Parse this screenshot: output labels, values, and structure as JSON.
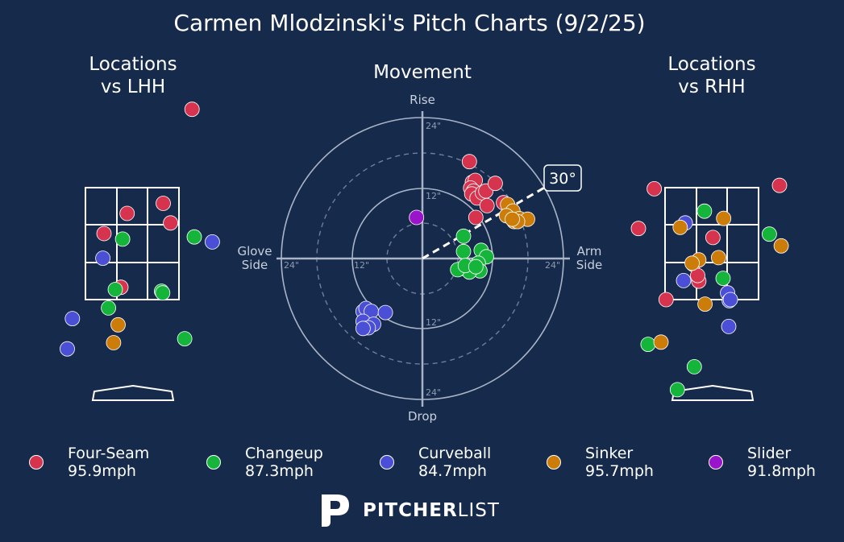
{
  "title": "Carmen Mlodzinski's Pitch Charts (9/2/25)",
  "colors": {
    "background": "#162a4c",
    "Four-Seam": "#d6344e",
    "Changeup": "#14b53a",
    "Curveball": "#4b4fd6",
    "Sinker": "#cc7c08",
    "Slider": "#9a14cc"
  },
  "panels": {
    "lhh_title": [
      "Locations",
      "vs LHH"
    ],
    "movement_title": "Movement",
    "rhh_title": [
      "Locations",
      "vs RHH"
    ]
  },
  "movement_labels": {
    "rise": "Rise",
    "drop": "Drop",
    "glove": [
      "Glove",
      "Side"
    ],
    "arm": [
      "Arm",
      "Side"
    ],
    "ticks": [
      "24\"",
      "12\"",
      "12\"",
      "24\"",
      "24\"",
      "12\"",
      "12\"",
      "24\""
    ],
    "arm_angle": "30°"
  },
  "legend": [
    {
      "pitch": "Four-Seam",
      "velo": "95.9mph"
    },
    {
      "pitch": "Changeup",
      "velo": "87.3mph"
    },
    {
      "pitch": "Curveball",
      "velo": "84.7mph"
    },
    {
      "pitch": "Sinker",
      "velo": "95.7mph"
    },
    {
      "pitch": "Slider",
      "velo": "91.8mph"
    }
  ],
  "logo": {
    "bold": "PITCHER",
    "light": "LIST",
    "icon": "pitcherlist-p-icon"
  },
  "chart_data": [
    {
      "type": "scatter",
      "title": "Locations vs LHH",
      "x_units": "plate_x (ft, catcher view)",
      "y_units": "plate_z (ft)",
      "strike_zone": {
        "x": [
          -0.83,
          0.83
        ],
        "z": [
          1.5,
          3.5
        ]
      },
      "series": [
        {
          "name": "Four-Seam",
          "points": [
            [
              1.06,
              4.9
            ],
            [
              0.55,
              3.22
            ],
            [
              -0.09,
              3.04
            ],
            [
              0.68,
              2.87
            ],
            [
              -0.5,
              2.68
            ],
            [
              -0.2,
              1.72
            ]
          ]
        },
        {
          "name": "Changeup",
          "points": [
            [
              -0.17,
              2.58
            ],
            [
              1.1,
              2.62
            ],
            [
              -0.3,
              1.68
            ],
            [
              0.52,
              1.65
            ],
            [
              0.54,
              1.62
            ],
            [
              -0.42,
              1.35
            ],
            [
              0.93,
              0.8
            ]
          ]
        },
        {
          "name": "Curveball",
          "points": [
            [
              -0.52,
              2.24
            ],
            [
              1.42,
              2.53
            ],
            [
              -1.06,
              1.16
            ],
            [
              -1.15,
              0.62
            ]
          ]
        },
        {
          "name": "Sinker",
          "points": [
            [
              -0.25,
              1.05
            ],
            [
              -0.33,
              0.73
            ]
          ]
        }
      ]
    },
    {
      "type": "scatter",
      "title": "Movement",
      "x_units": "horizontal break (in), glove side negative",
      "y_units": "induced vertical break (in)",
      "axis_range": [
        -24,
        24
      ],
      "series": [
        {
          "name": "Four-Seam",
          "points": [
            [
              8,
              16.5
            ],
            [
              8.5,
              13
            ],
            [
              9,
              13.3
            ],
            [
              8.2,
              12
            ],
            [
              8.7,
              11.5
            ],
            [
              8.4,
              11
            ],
            [
              9.3,
              10.3
            ],
            [
              10.2,
              11.2
            ],
            [
              10.8,
              11.5
            ],
            [
              12.4,
              12.8
            ],
            [
              11,
              9
            ],
            [
              13.8,
              9.5
            ],
            [
              9.1,
              7
            ]
          ]
        },
        {
          "name": "Changeup",
          "points": [
            [
              7,
              3.8
            ],
            [
              10,
              1.4
            ],
            [
              10.9,
              0.3
            ],
            [
              7,
              1.2
            ],
            [
              9.5,
              -0.8
            ],
            [
              8.7,
              -1.8
            ],
            [
              9.8,
              -2.1
            ],
            [
              6.8,
              -1.7
            ],
            [
              8,
              -2.3
            ],
            [
              6,
              -1.9
            ],
            [
              7.3,
              -1.2
            ],
            [
              9.1,
              -1.4
            ]
          ]
        },
        {
          "name": "Curveball",
          "points": [
            [
              -10.1,
              -9
            ],
            [
              -9.6,
              -8.5
            ],
            [
              -8.7,
              -9
            ],
            [
              -6.3,
              -9.2
            ],
            [
              -10.1,
              -10.7
            ],
            [
              -8.3,
              -11.2
            ],
            [
              -9.2,
              -11.8
            ],
            [
              -10.1,
              -11.9
            ]
          ]
        },
        {
          "name": "Sinker",
          "points": [
            [
              14.5,
              9.2
            ],
            [
              15.4,
              8.1
            ],
            [
              14.3,
              7.3
            ],
            [
              16.5,
              6.8
            ],
            [
              17.9,
              6.7
            ],
            [
              15.6,
              6.3
            ],
            [
              16.2,
              6.3
            ],
            [
              15.3,
              6.7
            ]
          ]
        },
        {
          "name": "Slider",
          "points": [
            [
              -1,
              7
            ]
          ]
        }
      ]
    },
    {
      "type": "scatter",
      "title": "Locations vs RHH",
      "x_units": "plate_x (ft, catcher view)",
      "y_units": "plate_z (ft)",
      "strike_zone": {
        "x": [
          -0.83,
          0.83
        ],
        "z": [
          1.5,
          3.5
        ]
      },
      "series": [
        {
          "name": "Four-Seam",
          "points": [
            [
              -1.02,
              3.48
            ],
            [
              1.2,
              3.54
            ],
            [
              -1.3,
              2.77
            ],
            [
              0.02,
              2.61
            ],
            [
              -0.33,
              2.13
            ],
            [
              -0.23,
              1.83
            ],
            [
              -0.25,
              1.93
            ],
            [
              -0.81,
              1.5
            ]
          ]
        },
        {
          "name": "Changeup",
          "points": [
            [
              -0.13,
              3.08
            ],
            [
              1.02,
              2.67
            ],
            [
              0.2,
              1.88
            ],
            [
              -1.13,
              0.7
            ],
            [
              -0.31,
              0.3
            ],
            [
              -0.61,
              -0.11
            ]
          ]
        },
        {
          "name": "Curveball",
          "points": [
            [
              -0.47,
              2.87
            ],
            [
              -0.5,
              1.84
            ],
            [
              0.28,
              1.62
            ],
            [
              0.31,
              1.48
            ],
            [
              0.33,
              1.5
            ],
            [
              0.3,
              1.02
            ]
          ]
        },
        {
          "name": "Sinker",
          "points": [
            [
              -0.56,
              2.79
            ],
            [
              0.21,
              2.95
            ],
            [
              1.23,
              2.46
            ],
            [
              -0.23,
              2.21
            ],
            [
              -0.35,
              2.15
            ],
            [
              0.12,
              2.25
            ],
            [
              -0.12,
              1.42
            ],
            [
              -0.9,
              0.74
            ]
          ]
        }
      ]
    }
  ]
}
